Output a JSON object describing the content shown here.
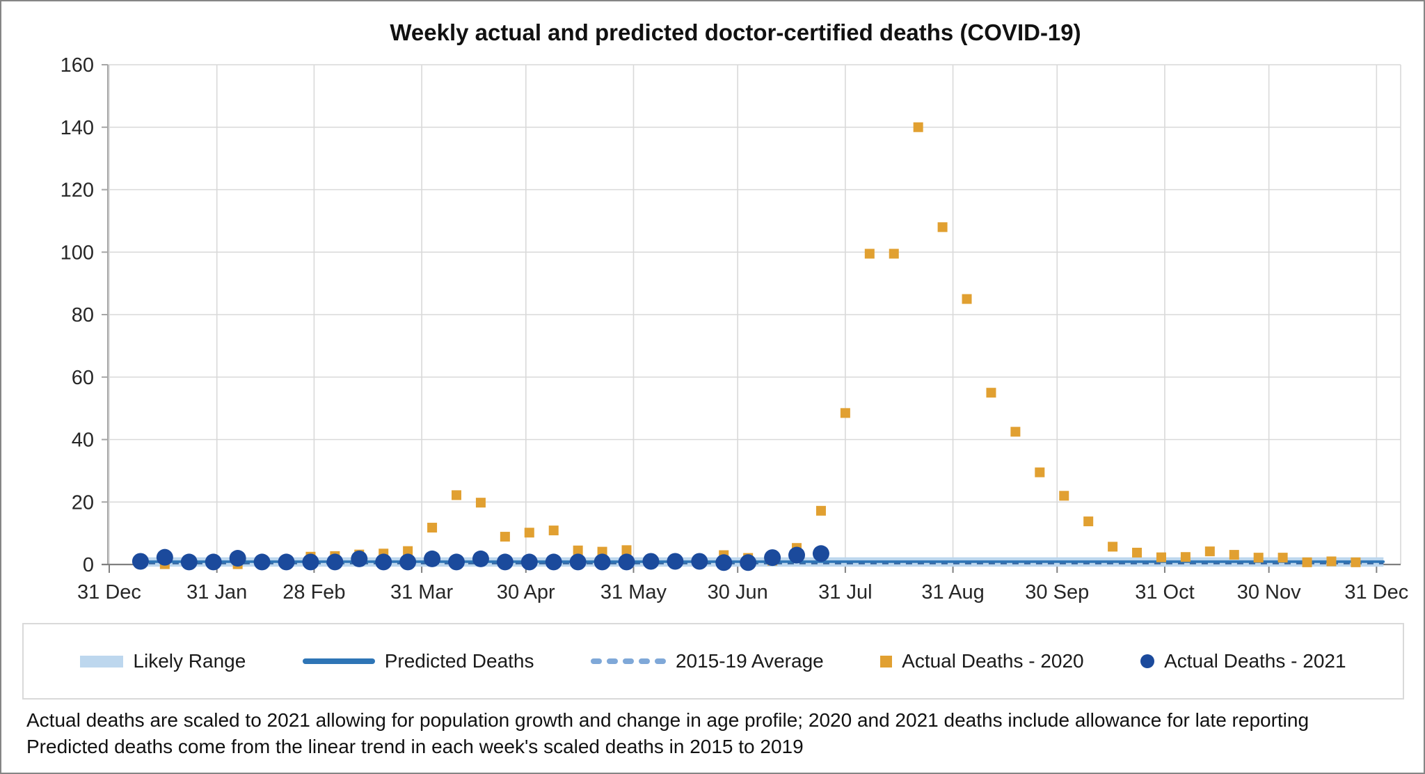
{
  "title": "Weekly actual and predicted doctor-certified deaths (COVID-19)",
  "footnotes": {
    "line1": "Actual deaths are scaled to 2021 allowing for population growth and change in age profile; 2020 and 2021 deaths include allowance for late reporting",
    "line2": "Predicted deaths come from the linear trend in each week's scaled deaths in 2015 to 2019"
  },
  "legend": {
    "items": [
      {
        "label": "Likely Range"
      },
      {
        "label": "Predicted Deaths"
      },
      {
        "label": "2015-19 Average"
      },
      {
        "label": "Actual Deaths - 2020"
      },
      {
        "label": "Actual Deaths - 2021"
      }
    ]
  },
  "colors": {
    "band": "#bdd7ee",
    "predicted_line": "#2e75b6",
    "average_dash_chart": "#3465a0",
    "average_dash_legend": "#7fa8d8",
    "deaths_2020": "#e1a031",
    "deaths_2021": "#1b4a9c",
    "gridline": "#d9d9d9",
    "y_axis_line": "#a6a6a6",
    "x_axis_line": "#808080",
    "tick_label": "#262626"
  },
  "chart_data": {
    "type": "scatter",
    "title": "Weekly actual and predicted doctor-certified deaths (COVID-19)",
    "xlabel": "",
    "ylabel": "",
    "grid": true,
    "legend_position": "bottom",
    "y_axis": {
      "min": 0,
      "max": 160,
      "step": 20,
      "tick_labels": [
        "0",
        "20",
        "40",
        "60",
        "80",
        "100",
        "120",
        "140",
        "160"
      ]
    },
    "x_axis": {
      "unit": "day-of-year",
      "tick_days": [
        0,
        31,
        59,
        90,
        120,
        151,
        181,
        212,
        243,
        273,
        304,
        334,
        365
      ],
      "tick_labels": [
        "31 Dec",
        "31 Jan",
        "28 Feb",
        "31 Mar",
        "30 Apr",
        "31 May",
        "30 Jun",
        "31 Jul",
        "31 Aug",
        "30 Sep",
        "31 Oct",
        "30 Nov",
        "31 Dec"
      ]
    },
    "series": [
      {
        "name": "Likely Range",
        "type": "band",
        "x_day_start": 8,
        "x_day_end": 367,
        "low": -0.7,
        "high": 2.3
      },
      {
        "name": "Predicted Deaths",
        "type": "line",
        "x_day_start": 8,
        "x_day_end": 367,
        "value": 0.9
      },
      {
        "name": "2015-19 Average",
        "type": "dashed-line",
        "x_day_start": 8,
        "x_day_end": 367,
        "value": 0.4
      },
      {
        "name": "Actual Deaths - 2020",
        "type": "scatter-square",
        "x_days": [
          9,
          16,
          23,
          30,
          37,
          44,
          51,
          58,
          65,
          72,
          79,
          86,
          93,
          100,
          107,
          114,
          121,
          128,
          135,
          142,
          149,
          156,
          163,
          170,
          177,
          184,
          191,
          198,
          205,
          212,
          219,
          226,
          233,
          240,
          247,
          254,
          261,
          268,
          275,
          282,
          289,
          296,
          303,
          310,
          317,
          324,
          331,
          338,
          345,
          352,
          359
        ],
        "values": [
          0.3,
          0.1,
          0.4,
          0.4,
          0.1,
          0.4,
          0.6,
          2.5,
          2.7,
          3.2,
          3.5,
          4.3,
          11.8,
          22.2,
          19.8,
          8.9,
          10.2,
          10.9,
          4.5,
          4.1,
          4.6,
          0.7,
          0.6,
          0.7,
          3.0,
          2.1,
          1.2,
          5.3,
          17.2,
          48.5,
          99.5,
          99.5,
          140,
          108,
          85,
          55,
          42.5,
          29.5,
          22,
          13.8,
          5.7,
          3.8,
          2.3,
          2.4,
          4.2,
          3.1,
          2.2,
          2.2,
          0.7,
          1.0,
          0.7
        ]
      },
      {
        "name": "Actual Deaths - 2021",
        "type": "scatter-circle",
        "x_days": [
          9,
          16,
          23,
          30,
          37,
          44,
          51,
          58,
          65,
          72,
          79,
          86,
          93,
          100,
          107,
          114,
          121,
          128,
          135,
          142,
          149,
          156,
          163,
          170,
          177,
          184,
          191,
          198,
          205
        ],
        "values": [
          1.0,
          2.3,
          0.8,
          0.8,
          2.0,
          0.8,
          0.8,
          0.8,
          0.8,
          1.8,
          0.8,
          0.8,
          1.8,
          0.8,
          1.8,
          0.8,
          0.8,
          0.8,
          0.8,
          0.8,
          0.8,
          1.0,
          1.0,
          1.0,
          0.6,
          0.6,
          2.2,
          3.0,
          3.5
        ]
      }
    ]
  }
}
